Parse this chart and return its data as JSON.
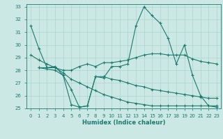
{
  "xlabel": "Humidex (Indice chaleur)",
  "xlim": [
    -0.5,
    23.5
  ],
  "ylim": [
    25,
    33.2
  ],
  "yticks": [
    25,
    26,
    27,
    28,
    29,
    30,
    31,
    32,
    33
  ],
  "xticks": [
    0,
    1,
    2,
    3,
    4,
    5,
    6,
    7,
    8,
    9,
    10,
    11,
    12,
    13,
    14,
    15,
    16,
    17,
    18,
    19,
    20,
    21,
    22,
    23
  ],
  "bg_color": "#cce8e4",
  "line_color": "#1a7a6e",
  "grid_color": "#aad4ce",
  "lines": [
    {
      "x": [
        0,
        1,
        2,
        3,
        4,
        5,
        6,
        7,
        8,
        9,
        10,
        11,
        12,
        13,
        14,
        15,
        16,
        17,
        18,
        19,
        20,
        21,
        22,
        23
      ],
      "y": [
        31.5,
        29.7,
        28.2,
        28.3,
        27.6,
        26.5,
        25.1,
        25.2,
        27.5,
        27.4,
        28.3,
        28.3,
        28.5,
        31.5,
        33.0,
        32.3,
        31.7,
        30.5,
        28.5,
        30.0,
        27.6,
        26.0,
        25.2,
        25.2
      ]
    },
    {
      "x": [
        1,
        2,
        3,
        4,
        5,
        6,
        7,
        8,
        9,
        10,
        11,
        12,
        13,
        14,
        15,
        16,
        17,
        18,
        19,
        20,
        21,
        22,
        23
      ],
      "y": [
        28.2,
        28.2,
        28.2,
        28.0,
        28.0,
        28.3,
        28.5,
        28.3,
        28.6,
        28.6,
        28.7,
        28.8,
        29.0,
        29.2,
        29.3,
        29.3,
        29.2,
        29.2,
        29.2,
        28.9,
        28.7,
        28.6,
        28.5
      ]
    },
    {
      "x": [
        0,
        1,
        2,
        3,
        4,
        5,
        6,
        7,
        8,
        9,
        10,
        11,
        12,
        13,
        14,
        15,
        16,
        17,
        18,
        19,
        20,
        21,
        22,
        23
      ],
      "y": [
        29.2,
        28.8,
        28.5,
        28.2,
        27.8,
        27.3,
        27.0,
        26.7,
        26.4,
        26.1,
        25.9,
        25.7,
        25.5,
        25.4,
        25.3,
        25.2,
        25.2,
        25.2,
        25.2,
        25.2,
        25.2,
        25.2,
        25.2,
        25.1
      ]
    },
    {
      "x": [
        1,
        2,
        3,
        4,
        5,
        6,
        7,
        8,
        9,
        10,
        11,
        12,
        13,
        14,
        15,
        16,
        17,
        18,
        19,
        20,
        21,
        22,
        23
      ],
      "y": [
        28.2,
        28.1,
        28.0,
        27.6,
        25.3,
        25.1,
        25.2,
        27.5,
        27.5,
        27.3,
        27.2,
        27.0,
        26.8,
        26.7,
        26.5,
        26.4,
        26.3,
        26.2,
        26.1,
        26.0,
        25.9,
        25.8,
        25.8
      ]
    }
  ]
}
